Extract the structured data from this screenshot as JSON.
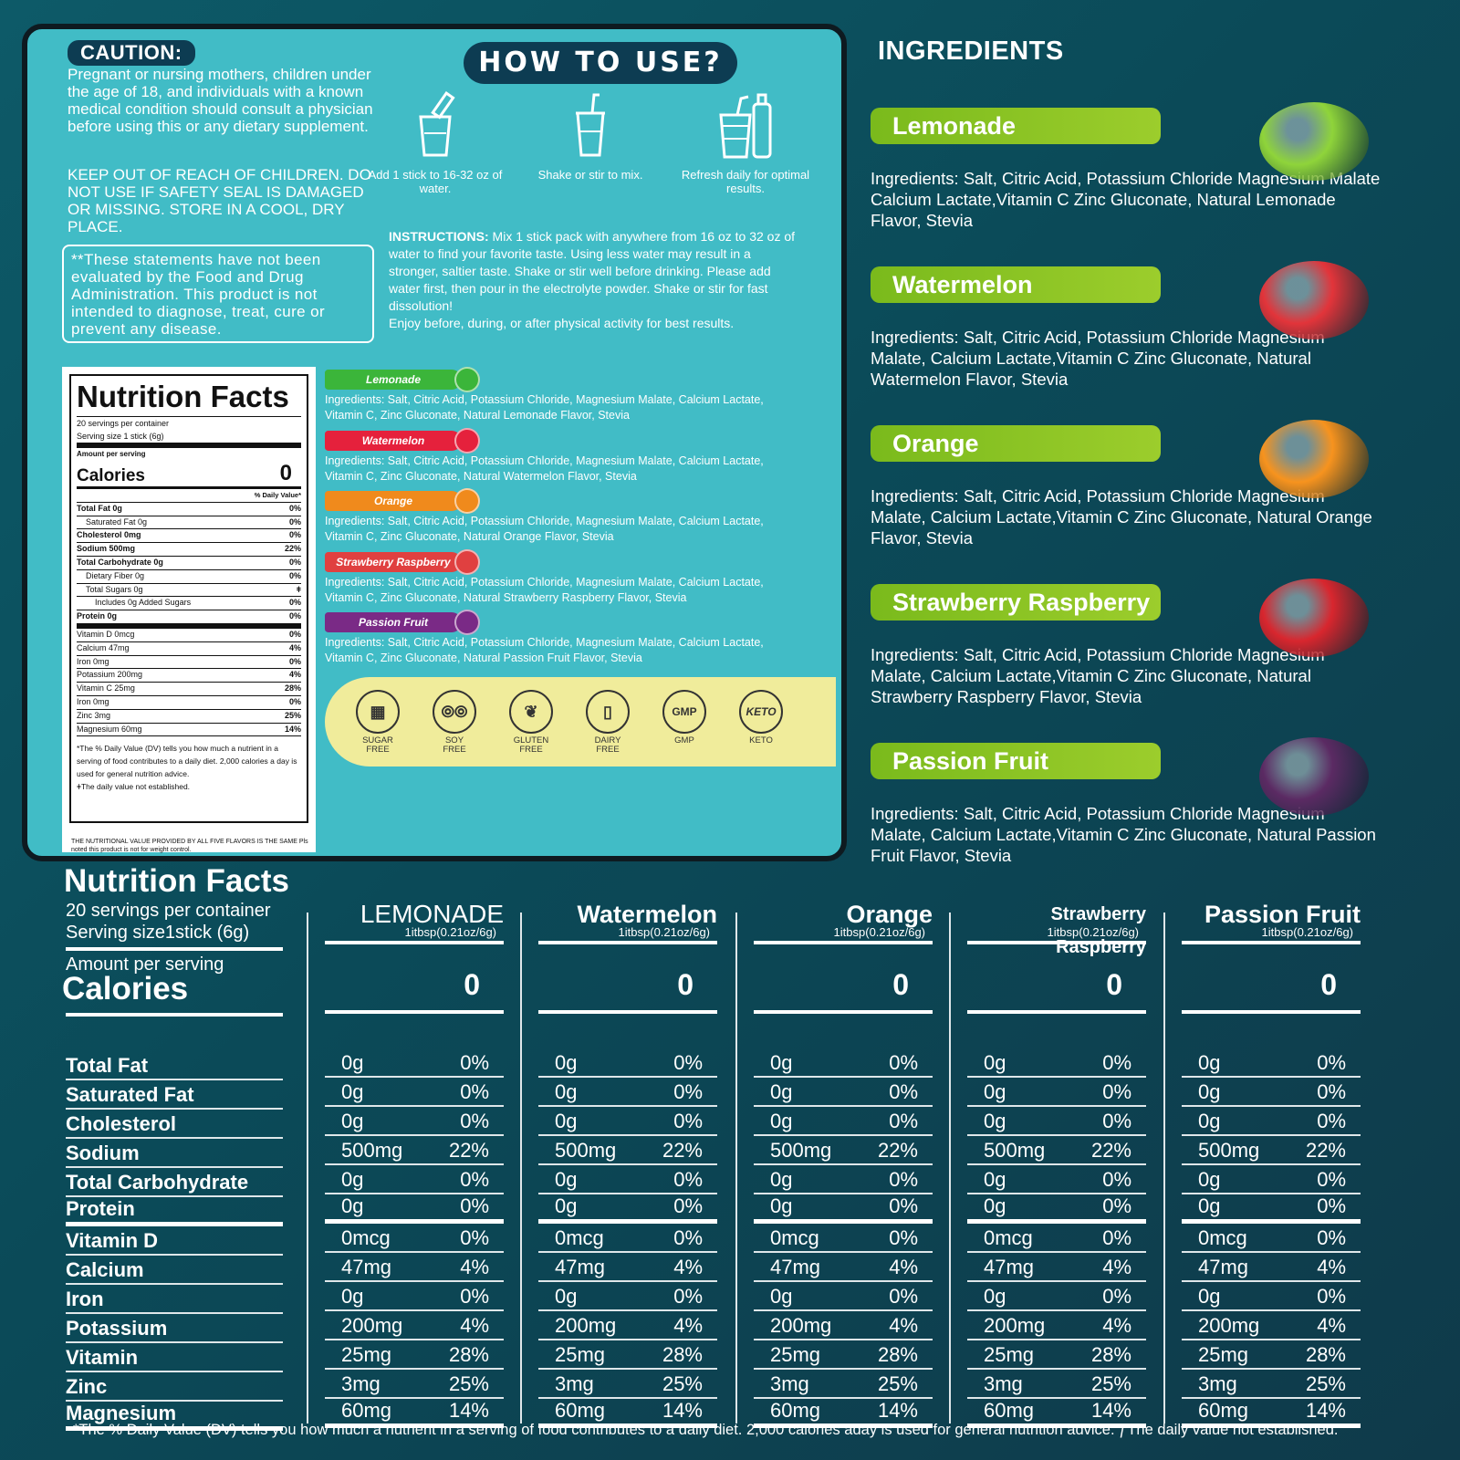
{
  "label_panel": {
    "caution_heading": "CAUTION:",
    "caution_text": "Pregnant or nursing mothers, children under the age of 18, and individuals with a known medical condition should consult a physician before using this or any dietary supplement.",
    "keep_out_text": "KEEP OUT OF REACH OF CHILDREN. DO NOT USE IF SAFETY SEAL IS DAMAGED OR MISSING. STORE IN A COOL, DRY PLACE.",
    "fda_statement": "**These statements have not been evaluated by the Food and Drug Administration. This product is not intended to diagnose, treat, cure or prevent any disease.",
    "how_to_use": "HOW TO USE?",
    "steps": [
      {
        "icon": "stick-into-glass-icon",
        "text": "Add 1 stick to 16-32 oz of water."
      },
      {
        "icon": "shake-cup-icon",
        "text": "Shake or stir to mix."
      },
      {
        "icon": "refresh-bottle-icon",
        "text": "Refresh daily for optimal results."
      }
    ],
    "instructions_label": "INSTRUCTIONS:",
    "instructions_text": " Mix 1 stick pack with anywhere from 16 oz to 32 oz of water to find your favorite taste. Using less water may result in a stronger, saltier taste. Shake or stir well before drinking. Please add water first, then pour in the electrolyte powder. Shake or stir for fast dissolution!",
    "instructions_extra": "Enjoy before, during, or after physical activity for best results.",
    "nutrition_card": {
      "title": "Nutrition Facts",
      "servings": "20 servings per container",
      "serving_size": "Serving size 1 stick (6g)",
      "amount_per_serving": "Amount per serving",
      "calories_label": "Calories",
      "calories_value": "0",
      "dv_header": "% Daily Value*",
      "rows": [
        {
          "label": "Total Fat 0g",
          "dv": "0%",
          "style": "bold"
        },
        {
          "label": "Saturated Fat 0g",
          "dv": "0%",
          "style": "ind"
        },
        {
          "label": "Cholesterol 0mg",
          "dv": "0%",
          "style": "bold"
        },
        {
          "label": "Sodium 500mg",
          "dv": "22%",
          "style": "bold"
        },
        {
          "label": "Total Carbohydrate 0g",
          "dv": "0%",
          "style": "bold"
        },
        {
          "label": "Dietary Fiber 0g",
          "dv": "0%",
          "style": "ind"
        },
        {
          "label": "Total Sugars 0g",
          "dv": "ǂ",
          "style": "ind"
        },
        {
          "label": "Includes 0g Added Sugars",
          "dv": "0%",
          "style": "ind2"
        },
        {
          "label": "Protein 0g",
          "dv": "0%",
          "style": "bold"
        },
        {
          "label": "Vitamin D 0mcg",
          "dv": "0%",
          "style": ""
        },
        {
          "label": "Calcium 47mg",
          "dv": "4%",
          "style": ""
        },
        {
          "label": "Iron 0mg",
          "dv": "0%",
          "style": ""
        },
        {
          "label": "Potassium 200mg",
          "dv": "4%",
          "style": ""
        },
        {
          "label": "Vitamin C 25mg",
          "dv": "28%",
          "style": ""
        },
        {
          "label": "Iron 0mg",
          "dv": "0%",
          "style": ""
        },
        {
          "label": "Zinc 3mg",
          "dv": "25%",
          "style": ""
        },
        {
          "label": "Magnesium 60mg",
          "dv": "14%",
          "style": ""
        }
      ],
      "footnote": "*The % Daily Value (DV) tells you how much a nutrient in a serving of food contributes to a daily diet. 2,000 calories a day is used for general nutrition advice.",
      "footnote2": "ǂThe daily value not established.",
      "bottom_note": "THE NUTRITIONAL VALUE PROVIDED BY ALL FIVE FLAVORS IS THE SAME Pls noted this product is not for weight control."
    },
    "flavor_bands": [
      {
        "name": "Lemonade",
        "color": "#3bb53a",
        "text": "Ingredients: Salt, Citric Acid, Potassium Chloride, Magnesium Malate, Calcium Lactate, Vitamin C, Zinc Gluconate, Natural Lemonade Flavor, Stevia"
      },
      {
        "name": "Watermelon",
        "color": "#e5213c",
        "text": "Ingredients: Salt, Citric Acid, Potassium Chloride, Magnesium Malate, Calcium Lactate, Vitamin C, Zinc Gluconate, Natural Watermelon Flavor, Stevia"
      },
      {
        "name": "Orange",
        "color": "#f08a1c",
        "text": "Ingredients: Salt, Citric Acid, Potassium Chloride, Magnesium Malate, Calcium Lactate, Vitamin C, Zinc Gluconate, Natural Orange Flavor, Stevia"
      },
      {
        "name": "Strawberry Raspberry",
        "color": "#e04040",
        "text": "Ingredients: Salt, Citric Acid, Potassium Chloride, Magnesium Malate, Calcium Lactate, Vitamin C, Zinc Gluconate, Natural Strawberry Raspberry Flavor, Stevia"
      },
      {
        "name": "Passion Fruit",
        "color": "#7a2a86",
        "text": "Ingredients: Salt, Citric Acid, Potassium Chloride, Magnesium Malate, Calcium Lactate, Vitamin C, Zinc Gluconate, Natural Passion Fruit Flavor, Stevia"
      }
    ],
    "badges": [
      {
        "icon": "sugar-cubes-icon",
        "label1": "SUGAR",
        "label2": "FREE"
      },
      {
        "icon": "soybeans-icon",
        "label1": "SOY",
        "label2": "FREE"
      },
      {
        "icon": "wheat-icon",
        "label1": "GLUTEN",
        "label2": "FREE"
      },
      {
        "icon": "milk-carton-icon",
        "label1": "DAIRY",
        "label2": "FREE"
      },
      {
        "icon": "gmp-seal-icon",
        "label1": "GMP",
        "label2": ""
      },
      {
        "icon": "keto-icon",
        "label1": "KETO",
        "label2": ""
      }
    ],
    "gmp_mark": "GMP",
    "keto_mark": "KETO"
  },
  "ingredients_section": {
    "heading": "INGREDIENTS",
    "flavors": [
      {
        "name": "Lemonade",
        "text": "Ingredients: Salt, Citric Acid, Potassium Chloride Magnesium Malate Calcium Lactate,Vitamin C Zinc Gluconate, Natural Lemonade Flavor, Stevia",
        "fruit_color": "#8fd43a"
      },
      {
        "name": "Watermelon",
        "text": "Ingredients: Salt, Citric Acid, Potassium Chloride Magnesium Malate, Calcium Lactate,Vitamin C Zinc Gluconate, Natural Watermelon Flavor, Stevia",
        "fruit_color": "#e2343a"
      },
      {
        "name": "Orange",
        "text": "Ingredients: Salt, Citric Acid, Potassium Chloride Magnesium Malate, Calcium Lactate,Vitamin C Zinc Gluconate, Natural Orange Flavor, Stevia",
        "fruit_color": "#f7931e"
      },
      {
        "name": "Strawberry Raspberry",
        "text": "Ingredients: Salt, Citric Acid, Potassium Chloride Magnesium Malate, Calcium Lactate,Vitamin C Zinc Gluconate, Natural Strawberry Raspberry Flavor, Stevia",
        "fruit_color": "#d8262e"
      },
      {
        "name": "Passion Fruit",
        "text": "Ingredients: Salt, Citric Acid, Potassium Chloride Magnesium Malate, Calcium Lactate,Vitamin C Zinc Gluconate, Natural Passion Fruit Flavor, Stevia",
        "fruit_color": "#5b2a63"
      }
    ]
  },
  "comparison_table": {
    "title": "Nutrition Facts",
    "servings": "20 servings per container",
    "serving_size": "Serving size1stick (6g)",
    "amount_per_serving": "Amount per serving",
    "calories_label": "Calories",
    "nutrients": [
      "Total Fat",
      "Saturated Fat",
      "Cholesterol",
      "Sodium",
      "Total Carbohydrate",
      "Protein",
      "Vitamin D",
      "Calcium",
      "Iron",
      "Potassium",
      "Vitamin",
      "Zinc",
      "Magnesium"
    ],
    "columns": [
      {
        "name": "LEMONADE",
        "serving": "1itbsp(0.21oz/6g)",
        "calories": "0"
      },
      {
        "name": "Watermelon",
        "serving": "1itbsp(0.21oz/6g)",
        "calories": "0"
      },
      {
        "name": "Orange",
        "serving": "1itbsp(0.21oz/6g)",
        "calories": "0"
      },
      {
        "name": "Strawberry Raspberry",
        "serving": "1itbsp(0.21oz/6g)",
        "calories": "0"
      },
      {
        "name": "Passion Fruit",
        "serving": "1itbsp(0.21oz/6g)",
        "calories": "0"
      }
    ],
    "values": [
      [
        "0g",
        "0%"
      ],
      [
        "0g",
        "0%"
      ],
      [
        "0g",
        "0%"
      ],
      [
        "500mg",
        "22%"
      ],
      [
        "0g",
        "0%"
      ],
      [
        "0g",
        "0%"
      ],
      [
        "0mcg",
        "0%"
      ],
      [
        "47mg",
        "4%"
      ],
      [
        "0g",
        "0%"
      ],
      [
        "200mg",
        "4%"
      ],
      [
        "25mg",
        "28%"
      ],
      [
        "3mg",
        "25%"
      ],
      [
        "60mg",
        "14%"
      ]
    ],
    "footnote": "*The % Daily Value (DV) tells you how much a nutrient in a serving of food contributes to a daily diet. 2,000 calories aday is used for general nutrition advice. ƒThe daily value not established."
  }
}
